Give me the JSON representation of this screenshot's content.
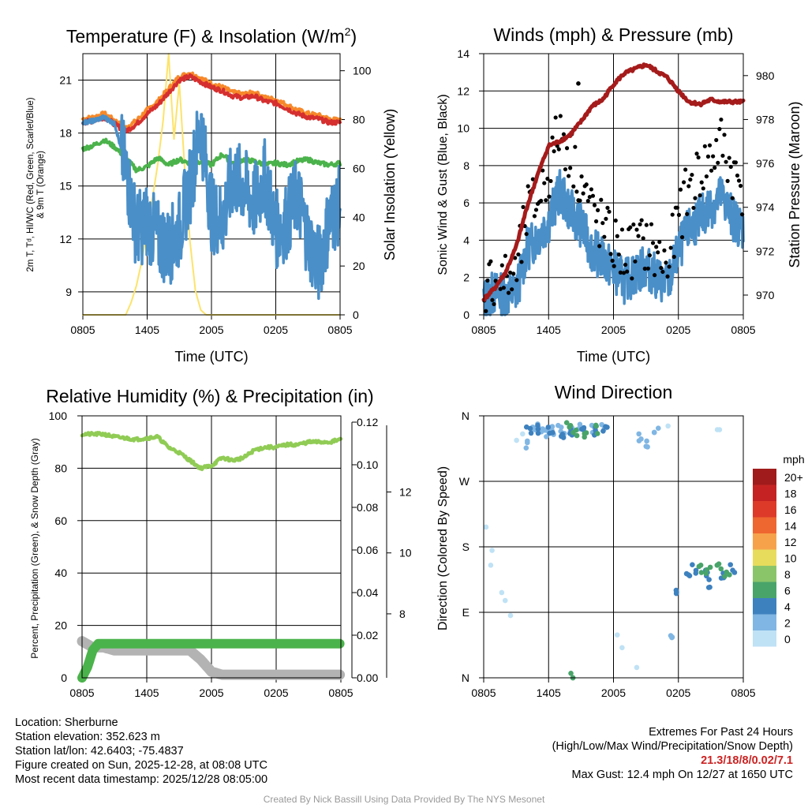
{
  "chart_data": [
    {
      "id": "temp",
      "type": "line",
      "title": "Temperature (F) & Insolation (W/m2)",
      "title_main": "Temperature (F) & Insolation (W/m",
      "title_sup": "2",
      "title_end": ")",
      "xlabel": "Time (UTC)",
      "ylabel_line1": "2m T, Tᵈ, HI/WC (Red, Green, Scarlet/Blue)",
      "ylabel_line2": "& 9m T (Orange)",
      "y2label": "Solar Insolation (Yellow)",
      "x_ticks": [
        "0805",
        "1405",
        "2005",
        "0205",
        "0805"
      ],
      "xlim": [
        0,
        24
      ],
      "y_ticks": [
        9,
        12,
        15,
        18,
        21
      ],
      "ylim": [
        7.7,
        22.5
      ],
      "y2_ticks": [
        0,
        20,
        40,
        60,
        80,
        100
      ],
      "y2lim": [
        0,
        107
      ],
      "series": [
        {
          "name": "9m T",
          "color": "#f7892a",
          "x": [
            0,
            1,
            2,
            3,
            4,
            5,
            6,
            7,
            8,
            9,
            10,
            11,
            12,
            13,
            14,
            15,
            16,
            17,
            18,
            19,
            20,
            21,
            22,
            23,
            24
          ],
          "values": [
            18.8,
            18.9,
            19.1,
            18.7,
            18.3,
            18.7,
            19.3,
            19.8,
            20.5,
            21.2,
            21.4,
            21.1,
            20.8,
            20.6,
            20.3,
            20.2,
            20.3,
            20.0,
            19.9,
            19.6,
            19.3,
            19.1,
            19.0,
            18.8,
            18.7
          ]
        },
        {
          "name": "2m T",
          "color": "#d62f2f",
          "x": [
            0,
            1,
            2,
            3,
            4,
            5,
            6,
            7,
            8,
            9,
            10,
            11,
            12,
            13,
            14,
            15,
            16,
            17,
            18,
            19,
            20,
            21,
            22,
            23,
            24
          ],
          "values": [
            18.6,
            18.7,
            18.9,
            18.5,
            18.1,
            18.5,
            19.1,
            19.6,
            20.3,
            21.0,
            21.2,
            20.9,
            20.6,
            20.4,
            20.1,
            20.0,
            20.1,
            19.8,
            19.7,
            19.4,
            19.1,
            18.9,
            18.8,
            18.6,
            18.6
          ]
        },
        {
          "name": "Dewpoint",
          "color": "#4bb34b",
          "x": [
            0,
            1,
            2,
            3,
            4,
            5,
            6,
            7,
            8,
            9,
            10,
            11,
            12,
            13,
            14,
            15,
            16,
            17,
            18,
            19,
            20,
            21,
            22,
            23,
            24
          ],
          "values": [
            17.1,
            17.3,
            17.6,
            17.2,
            16.6,
            15.9,
            16.1,
            16.6,
            16.2,
            16.5,
            16.3,
            16.4,
            16.2,
            16.8,
            16.3,
            16.5,
            16.4,
            16.2,
            16.3,
            16.2,
            16.4,
            16.5,
            16.3,
            16.2,
            16.3
          ]
        },
        {
          "name": "Wind chill",
          "color": "#4a8fc8",
          "x": [
            0,
            1,
            2,
            3,
            4,
            5,
            6,
            7,
            8,
            9,
            10,
            11,
            12,
            13,
            14,
            15,
            16,
            17,
            18,
            19,
            20,
            21,
            22,
            23,
            24
          ],
          "values": [
            18.6,
            18.7,
            18.9,
            18.5,
            16.0,
            12.5,
            13.0,
            12.0,
            11.5,
            12.5,
            15.0,
            18.5,
            13.5,
            13.0,
            15.5,
            15.0,
            14.0,
            15.5,
            12.5,
            13.0,
            14.5,
            12.0,
            10.5,
            13.0,
            14.0
          ]
        }
      ],
      "y2_series": [
        {
          "name": "Solar insolation",
          "color": "#fde36a",
          "x": [
            0,
            3,
            4,
            4.5,
            5,
            5.5,
            6,
            6.5,
            7,
            7.5,
            8,
            8.5,
            9,
            9.5,
            10,
            10.5,
            11,
            11.5,
            12,
            15,
            24
          ],
          "values": [
            0,
            0,
            0,
            5,
            12,
            22,
            35,
            48,
            62,
            80,
            107,
            72,
            95,
            60,
            30,
            10,
            2,
            0,
            0,
            0,
            0
          ]
        }
      ]
    },
    {
      "id": "winds",
      "type": "line",
      "title": "Winds (mph) & Pressure (mb)",
      "xlabel": "Time (UTC)",
      "ylabel": "Sonic Wind & Gust (Blue, Black)",
      "y2label": "Station Pressure (Maroon)",
      "x_ticks": [
        "0805",
        "1405",
        "2005",
        "0205",
        "0805"
      ],
      "xlim": [
        0,
        24
      ],
      "y_ticks": [
        0,
        2,
        4,
        6,
        8,
        10,
        12,
        14
      ],
      "ylim": [
        0,
        14
      ],
      "y2_ticks": [
        970,
        972,
        974,
        976,
        978,
        980
      ],
      "y2lim": [
        969.1,
        981
      ],
      "series": [
        {
          "name": "Sonic wind",
          "color": "#4a8fc8",
          "x": [
            0,
            1,
            2,
            3,
            4,
            5,
            6,
            7,
            8,
            9,
            10,
            11,
            12,
            13,
            14,
            15,
            16,
            17,
            18,
            19,
            20,
            21,
            22,
            23,
            24
          ],
          "values": [
            0.8,
            1.2,
            1.0,
            1.2,
            3.5,
            4.2,
            5.0,
            6.6,
            5.6,
            4.8,
            3.5,
            3.0,
            2.4,
            1.8,
            2.2,
            2.6,
            2.0,
            1.6,
            3.4,
            4.6,
            5.2,
            5.8,
            6.4,
            5.2,
            4.6
          ]
        },
        {
          "name": "Gust",
          "color": "#000000",
          "x": [
            0,
            1,
            2,
            3,
            4,
            5,
            6,
            7,
            8,
            9,
            10,
            11,
            12,
            13,
            14,
            15,
            16,
            17,
            18,
            19,
            20,
            21,
            22,
            23,
            24
          ],
          "values": [
            1.4,
            2.0,
            1.8,
            2.0,
            5.4,
            6.2,
            7.6,
            10.0,
            8.6,
            7.2,
            5.6,
            4.6,
            3.8,
            3.2,
            3.6,
            3.8,
            3.2,
            2.6,
            5.2,
            6.8,
            7.6,
            8.4,
            9.2,
            7.6,
            6.8
          ]
        }
      ],
      "y2_series": [
        {
          "name": "Station pressure",
          "color": "#a51b1b",
          "x": [
            0,
            1,
            2,
            3,
            4,
            5,
            6,
            7,
            8,
            9,
            10,
            11,
            12,
            13,
            14,
            15,
            16,
            17,
            18,
            19,
            20,
            21,
            22,
            23,
            24
          ],
          "values": [
            969.8,
            970.3,
            971.0,
            972.2,
            974.0,
            975.5,
            976.8,
            977.0,
            977.3,
            977.9,
            978.6,
            978.9,
            979.6,
            980.1,
            980.3,
            980.5,
            980.2,
            979.9,
            979.3,
            978.8,
            978.7,
            978.9,
            978.8,
            978.8,
            978.8
          ]
        }
      ],
      "max_gust_point": {
        "x": 8.75,
        "value": 12.4
      }
    },
    {
      "id": "rh",
      "type": "line",
      "title": "Relative Humidity (%) & Precipitation (in)",
      "ylabel": "Percent, Precipitation (Green), & Snow Depth (Gray)",
      "x_ticks": [
        "0805",
        "1405",
        "2005",
        "0205",
        "0805"
      ],
      "xlim": [
        0,
        24
      ],
      "y_ticks": [
        0,
        20,
        40,
        60,
        80,
        100
      ],
      "ylim": [
        0,
        100
      ],
      "y2_ticks": [
        "0.00",
        "0.02",
        "0.04",
        "0.06",
        "0.08",
        "0.10",
        "0.12"
      ],
      "y2lim": [
        0,
        0.12
      ],
      "y3_ticks": [
        8,
        10,
        12
      ],
      "y3lim": [
        5.9,
        14.5
      ],
      "series": [
        {
          "name": "Relative humidity",
          "color": "#90cc55",
          "x": [
            0,
            2,
            3,
            5,
            7,
            8,
            9,
            10,
            11,
            12,
            13,
            14,
            15,
            16,
            17,
            18,
            19,
            20,
            21,
            22,
            23,
            24
          ],
          "values": [
            93,
            93,
            92,
            91,
            92,
            88,
            86,
            83,
            80,
            81,
            84,
            83,
            84,
            87,
            88,
            88,
            89,
            89,
            90,
            90,
            90,
            91
          ]
        },
        {
          "name": "Precipitation",
          "color": "#4bb34b",
          "x": [
            0,
            0.5,
            1,
            1.5,
            2,
            3,
            24
          ],
          "values": [
            0,
            0.005,
            0.013,
            0.016,
            0.016,
            0.016,
            0.016
          ]
        },
        {
          "name": "Snow depth",
          "color": "#b3b3b3",
          "x": [
            0,
            1,
            2,
            3,
            10,
            11,
            12,
            13,
            14,
            24
          ],
          "values": [
            7.1,
            6.9,
            6.9,
            6.8,
            6.8,
            6.5,
            6.1,
            6.0,
            6.0,
            6.0
          ]
        }
      ]
    },
    {
      "id": "wdir",
      "type": "scatter",
      "title": "Wind Direction",
      "ylabel": "Direction (Colored By Speed)",
      "x_ticks": [
        "0805",
        "1405",
        "2005",
        "0205",
        "0805"
      ],
      "xlim": [
        0,
        24
      ],
      "y_ticks": [
        "N",
        "E",
        "S",
        "W",
        "N"
      ],
      "ylim": [
        0,
        360
      ],
      "legend_title": "mph",
      "legend": [
        {
          "label": "20+",
          "color": "#a01b1b"
        },
        {
          "label": "18",
          "color": "#c52323"
        },
        {
          "label": "16",
          "color": "#dd3a2a"
        },
        {
          "label": "14",
          "color": "#ee6630"
        },
        {
          "label": "12",
          "color": "#f6a24b"
        },
        {
          "label": "10",
          "color": "#e8dc5c"
        },
        {
          "label": "8",
          "color": "#8bc56a"
        },
        {
          "label": "6",
          "color": "#49a46a"
        },
        {
          "label": "4",
          "color": "#3e81bf"
        },
        {
          "label": "2",
          "color": "#80b6e3"
        },
        {
          "label": "0",
          "color": "#bfe2f5"
        }
      ],
      "series": [
        {
          "name": "Calm 0-2",
          "color": "#bfe2f5",
          "x": [
            0.2,
            0.5,
            1.0,
            1.5,
            2.0,
            2.5,
            3.0,
            3.5,
            12.5,
            13.0,
            14.0,
            17.0,
            21.5,
            22.0
          ],
          "values": [
            210,
            150,
            180,
            120,
            100,
            90,
            320,
            340,
            60,
            40,
            10,
            350,
            340,
            345
          ]
        },
        {
          "name": "2-4",
          "color": "#80b6e3",
          "x": [
            3.8,
            4.5,
            5.0,
            5.5,
            6.0,
            6.5,
            7.0,
            7.5,
            8.0,
            9.0,
            10.0,
            11.0,
            14.5,
            15.0,
            16.0,
            17.5
          ],
          "values": [
            320,
            340,
            345,
            342,
            338,
            340,
            345,
            340,
            338,
            342,
            340,
            343,
            330,
            320,
            340,
            60
          ]
        },
        {
          "name": "4-6",
          "color": "#3e81bf",
          "x": [
            4.2,
            5.2,
            6.2,
            7.2,
            8.2,
            9.2,
            10.2,
            11.2,
            18.0,
            19.0,
            19.5,
            20.5,
            21.0,
            22.0,
            23.0
          ],
          "values": [
            340,
            342,
            338,
            336,
            338,
            342,
            340,
            341,
            120,
            140,
            150,
            145,
            130,
            140,
            150
          ]
        },
        {
          "name": "6-8",
          "color": "#49a46a",
          "x": [
            7.8,
            8.5,
            9.5,
            10.5,
            8.2,
            20.0,
            20.8,
            21.8,
            22.5
          ],
          "values": [
            345,
            338,
            336,
            342,
            0,
            150,
            145,
            155,
            140
          ]
        }
      ]
    }
  ],
  "info": {
    "location": "Location: Sherburne",
    "elevation": "Station elevation: 352.623 m",
    "latlon": "Station lat/lon: 42.6403; -75.4837",
    "created": "Figure created on Sun, 2025-12-28, at 08:08 UTC",
    "recent": "Most recent data timestamp: 2025/12/28 08:05:00"
  },
  "extremes": {
    "title": "Extremes For Past 24 Hours",
    "subtitle": "(High/Low/Max Wind/Precipitation/Snow Depth)",
    "values": "21.3/18/8/0.02/7.1",
    "max_gust": "Max Gust: 12.4 mph On 12/27 at 1650 UTC"
  },
  "credit": "Created By Nick Bassill Using Data Provided By The NYS Mesonet"
}
